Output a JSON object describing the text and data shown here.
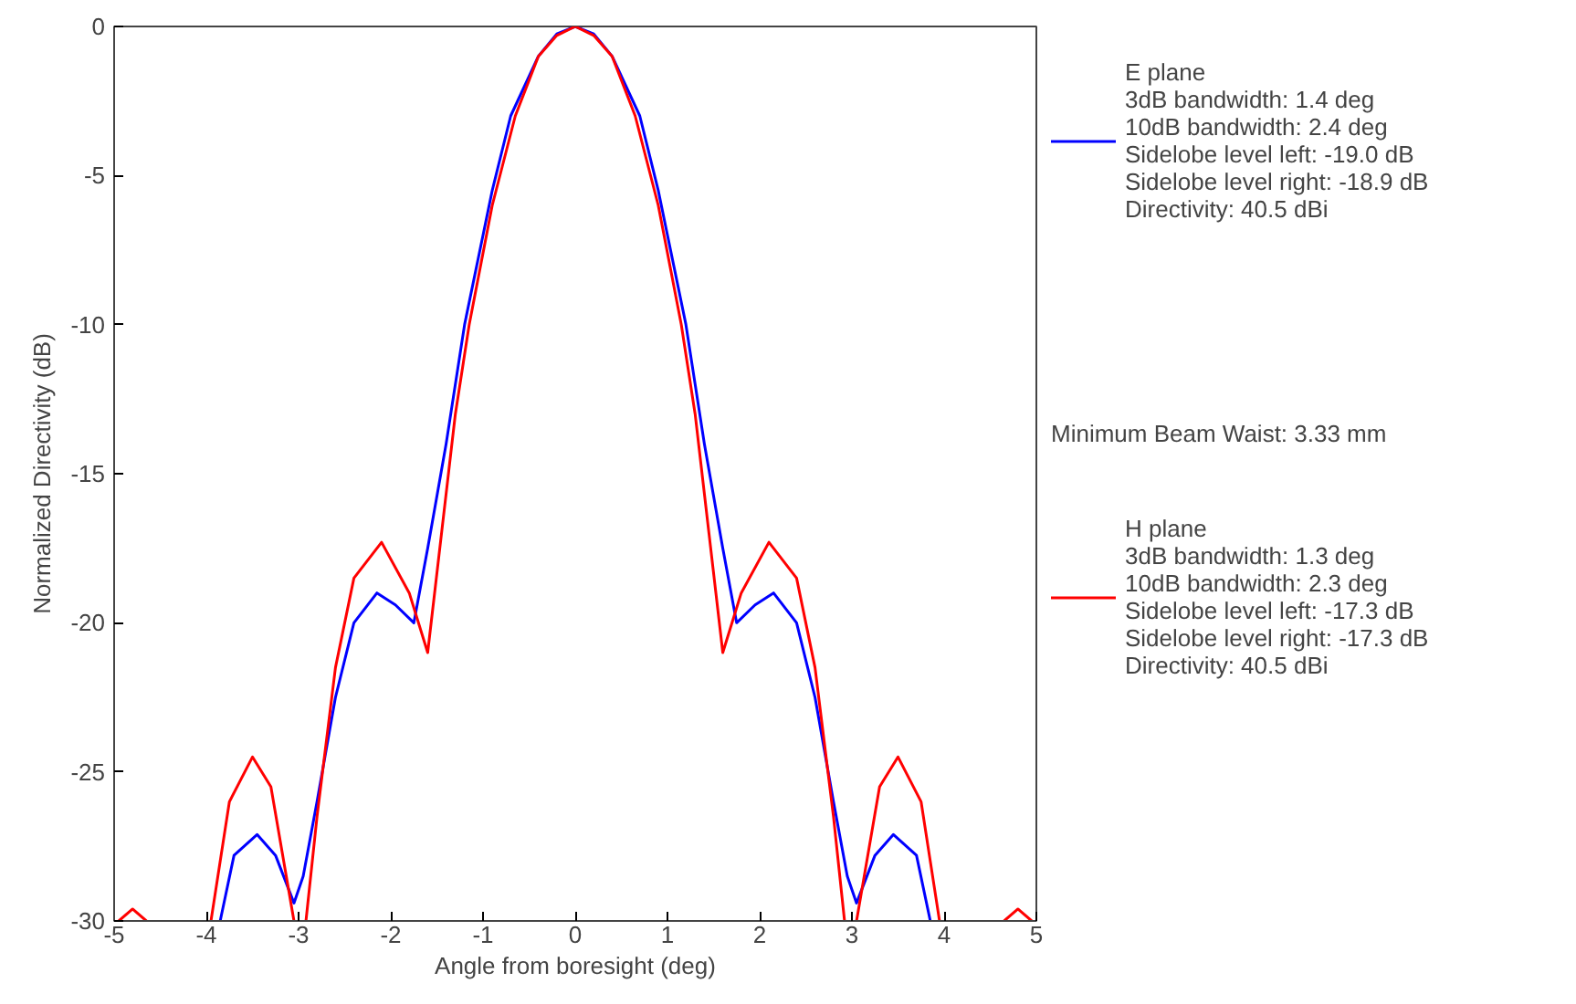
{
  "chart_data": {
    "type": "line",
    "xlabel": "Angle from boresight (deg)",
    "ylabel": "Normalized Directivity (dB)",
    "xlim": [
      -5,
      5
    ],
    "ylim": [
      -30,
      0
    ],
    "xticks": [
      -5,
      -4,
      -3,
      -2,
      -1,
      0,
      1,
      2,
      3,
      4,
      5
    ],
    "yticks": [
      -30,
      -25,
      -20,
      -15,
      -10,
      -5,
      0
    ],
    "grid": false,
    "legend": "right",
    "line_style": "solid",
    "marker": "none",
    "annotations": [
      "Minimum Beam Waist: 3.33 mm"
    ],
    "series": [
      {
        "name": "E plane\n3dB bandwidth: 1.4 deg\n10dB bandwidth: 2.4 deg\nSidelobe level left: -19.0 dB\nSidelobe level right: -18.9 dB\nDirectivity: 40.5 dBi",
        "color": "#0000ff",
        "x": [
          -3.85,
          -3.7,
          -3.45,
          -3.25,
          -3.05,
          -2.95,
          -2.8,
          -2.6,
          -2.4,
          -2.15,
          -1.95,
          -1.75,
          -1.6,
          -1.4,
          -1.2,
          -0.9,
          -0.7,
          -0.4,
          -0.2,
          0,
          0.2,
          0.4,
          0.7,
          0.9,
          1.2,
          1.4,
          1.6,
          1.75,
          1.95,
          2.15,
          2.4,
          2.6,
          2.8,
          2.95,
          3.05,
          3.25,
          3.45,
          3.7,
          3.85
        ],
        "values": [
          -30,
          -27.8,
          -27.1,
          -27.8,
          -29.4,
          -28.5,
          -26,
          -22.5,
          -20,
          -19,
          -19.4,
          -20,
          -17.5,
          -14,
          -10,
          -5.5,
          -3,
          -1,
          -0.25,
          0,
          -0.25,
          -1,
          -3,
          -5.5,
          -10,
          -14,
          -17.5,
          -20,
          -19.4,
          -19,
          -20,
          -22.5,
          -26,
          -28.5,
          -29.4,
          -27.8,
          -27.1,
          -27.8,
          -30
        ]
      },
      {
        "name": "H plane\n3dB bandwidth: 1.3 deg\n10dB bandwidth: 2.3 deg\nSidelobe level left: -17.3 dB\nSidelobe level right: -17.3 dB\nDirectivity: 40.5 dBi",
        "color": "#ff0000",
        "x": [
          -4.95,
          -4.8,
          -4.65,
          -4.3,
          -3.95,
          -3.75,
          -3.5,
          -3.3,
          -3.05,
          -3.0,
          -2.92,
          -2.8,
          -2.6,
          -2.4,
          -2.1,
          -1.8,
          -1.6,
          -1.45,
          -1.3,
          -1.15,
          -0.9,
          -0.65,
          -0.4,
          -0.2,
          0,
          0.2,
          0.4,
          0.65,
          0.9,
          1.15,
          1.3,
          1.45,
          1.6,
          1.8,
          2.1,
          2.4,
          2.6,
          2.8,
          2.92,
          3.0,
          3.05,
          3.3,
          3.5,
          3.75,
          3.95,
          4.3,
          4.65,
          4.8,
          4.95
        ],
        "values": [
          -30,
          -29.6,
          -30,
          null,
          -30,
          -26,
          -24.5,
          -25.5,
          -30,
          null,
          -30,
          -26.5,
          -21.5,
          -18.5,
          -17.3,
          -19,
          -21,
          -17,
          -13,
          -10,
          -6,
          -3,
          -1,
          -0.3,
          0,
          -0.3,
          -1,
          -3,
          -6,
          -10,
          -13,
          -17,
          -21,
          -19,
          -17.3,
          -18.5,
          -21.5,
          -26.5,
          -30,
          null,
          -30,
          -25.5,
          -24.5,
          -26,
          -30,
          null,
          -30,
          -29.6,
          -30
        ]
      }
    ]
  }
}
